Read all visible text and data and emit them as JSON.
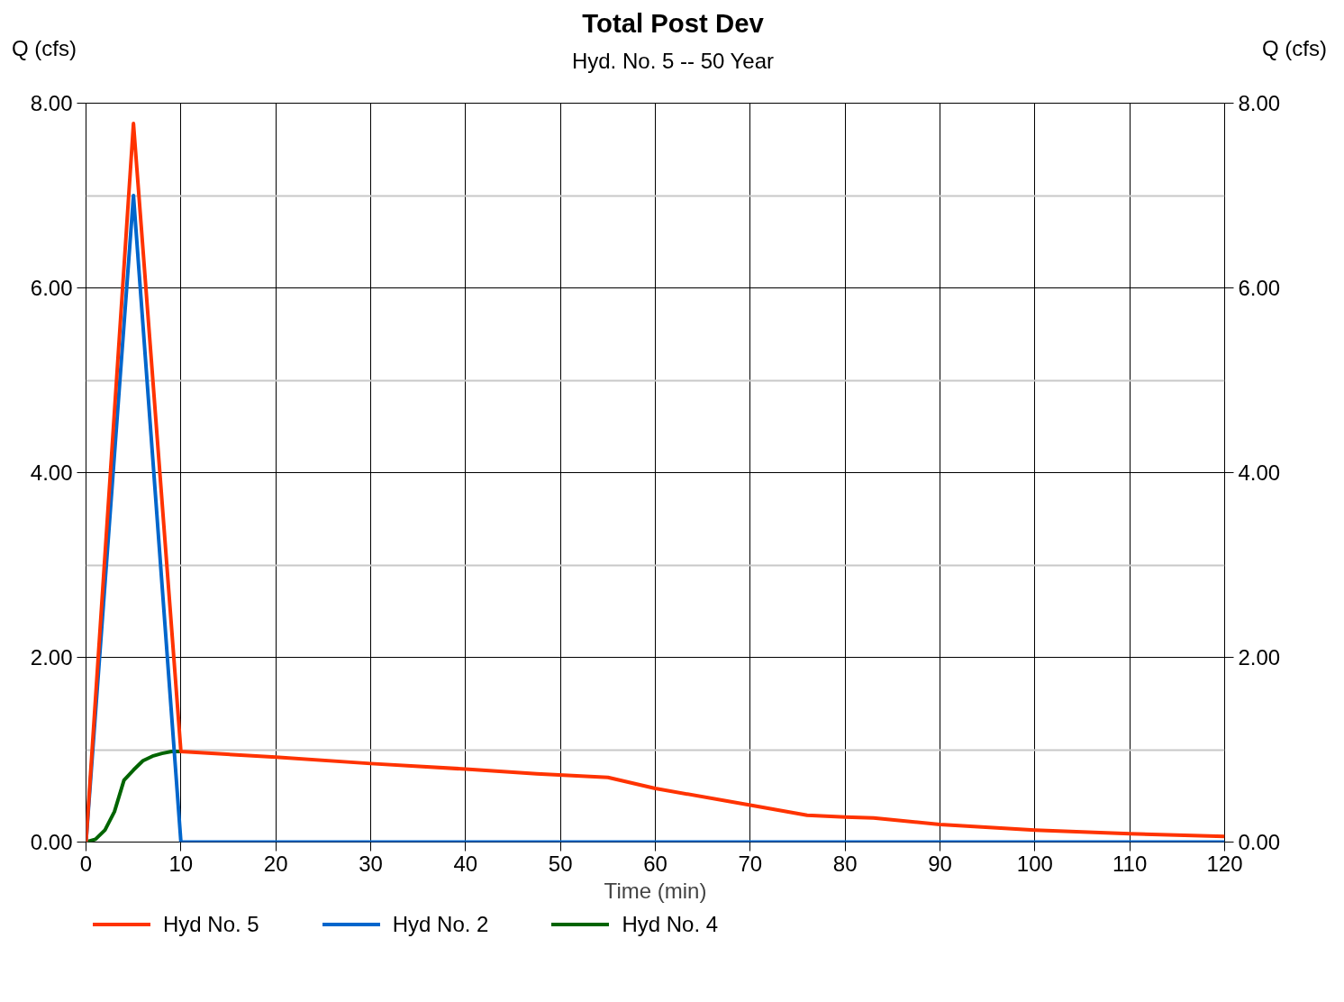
{
  "chart_data": {
    "type": "line",
    "title": "Total Post Dev",
    "subtitle": "Hyd. No. 5 -- 50 Year",
    "xlabel": "Time (min)",
    "ylabel": "Q (cfs)",
    "y2label": "Q (cfs)",
    "xlim": [
      0,
      120
    ],
    "xticks": [
      0,
      10,
      20,
      30,
      40,
      50,
      60,
      70,
      80,
      90,
      100,
      110,
      120
    ],
    "ylim": [
      0,
      8
    ],
    "yticks": [
      {
        "value": 0,
        "label": "0.00"
      },
      {
        "value": 1,
        "label": null
      },
      {
        "value": 2,
        "label": "2.00"
      },
      {
        "value": 3,
        "label": null
      },
      {
        "value": 4,
        "label": "4.00"
      },
      {
        "value": 5,
        "label": null
      },
      {
        "value": 6,
        "label": "6.00"
      },
      {
        "value": 7,
        "label": null
      },
      {
        "value": 8,
        "label": "8.00"
      }
    ],
    "y2lim": [
      0,
      8
    ],
    "y2ticks": [
      {
        "value": 0,
        "label": "0.00"
      },
      {
        "value": 2,
        "label": "2.00"
      },
      {
        "value": 4,
        "label": "4.00"
      },
      {
        "value": 6,
        "label": "6.00"
      },
      {
        "value": 8,
        "label": "8.00"
      }
    ],
    "grid": true,
    "legend": "bottom",
    "series": [
      {
        "name": "Hyd No. 4",
        "color": "#006400",
        "x": [
          0,
          1,
          2,
          3,
          4,
          5,
          6,
          7,
          8,
          9,
          10
        ],
        "values": [
          0,
          0.03,
          0.13,
          0.33,
          0.67,
          0.78,
          0.88,
          0.93,
          0.96,
          0.98,
          0.98
        ]
      },
      {
        "name": "Hyd No. 2",
        "color": "#0066cc",
        "x": [
          0,
          5,
          10,
          120
        ],
        "values": [
          0,
          7.0,
          0,
          0
        ]
      },
      {
        "name": "Hyd No. 5",
        "color": "#ff3300",
        "x": [
          0,
          5,
          10,
          20,
          30,
          40,
          47.5,
          55,
          60,
          70,
          76,
          80,
          83,
          90,
          100,
          110,
          120
        ],
        "values": [
          0,
          7.78,
          0.98,
          0.92,
          0.85,
          0.79,
          0.74,
          0.7,
          0.58,
          0.4,
          0.29,
          0.27,
          0.26,
          0.19,
          0.13,
          0.09,
          0.06
        ]
      }
    ]
  }
}
